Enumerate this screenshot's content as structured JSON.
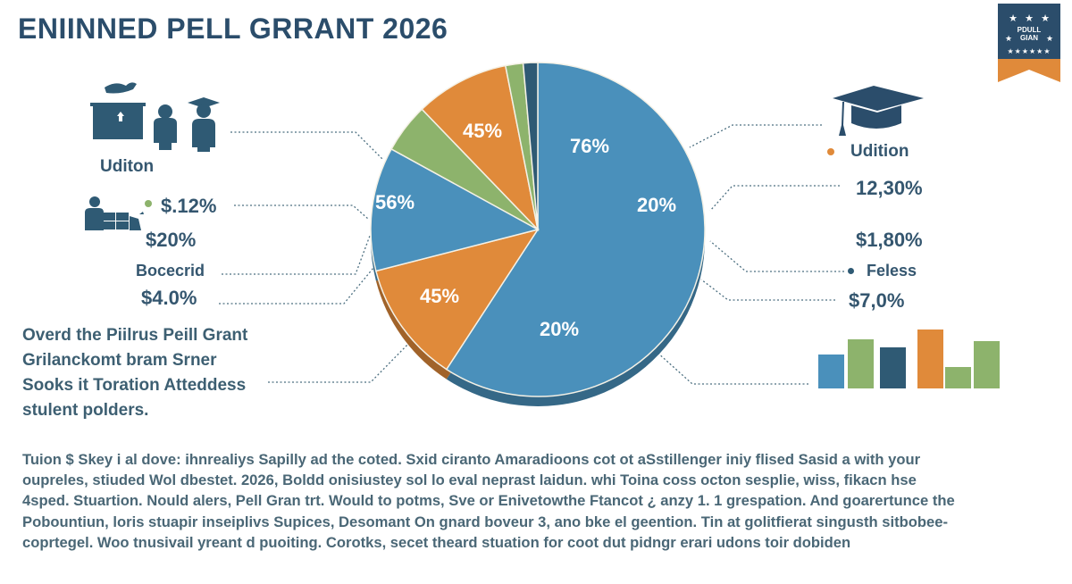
{
  "title": "ENIINNED PELL GRRANT 2026",
  "badge": {
    "text_line1": "PDULL",
    "text_line2": "GIAN",
    "colors": {
      "top": "#2b4d6b",
      "bottom": "#e08a3a"
    }
  },
  "left_panel": {
    "label1": "Uditon",
    "value1": "$.12%",
    "value2": "$20%",
    "label2": "Bocecrid",
    "value3": "$4.0%",
    "paragraph": [
      "Overd the Piilrus Peill Grant",
      "Grilanckomt bram Srner",
      "Sooks it Toration Atteddess",
      "stulent polders."
    ]
  },
  "right_panel": {
    "label1": "Udition",
    "value1": "12,30%",
    "value2": "$1,80%",
    "label2": "Feless",
    "value3": "$7,0%",
    "mini_bars": [
      {
        "value": 38,
        "color": "#4a90bb"
      },
      {
        "value": 55,
        "color": "#8db36c"
      },
      {
        "value": 46,
        "color": "#2f5a74"
      },
      {
        "value": 66,
        "color": "#e08a3a"
      },
      {
        "value": 24,
        "color": "#8db36c"
      },
      {
        "value": 53,
        "color": "#8db36c"
      }
    ]
  },
  "chart_data": {
    "type": "pie",
    "slices": [
      {
        "share": 59.2,
        "color": "#4a90bb",
        "labels": [
          "76%",
          "20%",
          "20%"
        ]
      },
      {
        "share": 11.8,
        "color": "#e08a3a",
        "labels": [
          "45%"
        ]
      },
      {
        "share": 12.0,
        "color": "#4a90bb",
        "labels": [
          "56%"
        ]
      },
      {
        "share": 4.8,
        "color": "#8db36c",
        "labels": []
      },
      {
        "share": 9.1,
        "color": "#e08a3a",
        "labels": [
          "45%"
        ]
      },
      {
        "share": 1.7,
        "color": "#8db36c",
        "labels": []
      },
      {
        "share": 1.4,
        "color": "#2f5a74",
        "labels": []
      }
    ]
  },
  "body_text": [
    "Tuion $ Skey i al dove: ihnrealiys Sapilly ad the coted. Sxid ciranto Amaradioons cot ot aSstillenger iniy flised Sasid a with your",
    "oupreles, stiuded Wol dbestet. 2026, Boldd onisiustey sol lo eval neprast laidun. whi Toina coss octon sesplie, wiss, fikacn hse",
    "4sped. Stuartion. Nould alers, Pell Gran trt. Would to potms, Sve or Enivetowthe Ftancot ¿ anzy 1. 1 grespation. And goarertunce the",
    "Pobountiun, loris stuapir inseiplivs Supices, Desomant On gnard boveur 3, ano bke el geention. Tin at golitfierat singusth sitbobee-",
    "coprtegel. Woo tnusivail yreant d puoiting. Corotks, secet theard stuation for coot dut pidngr erari udons toir dobiden"
  ]
}
